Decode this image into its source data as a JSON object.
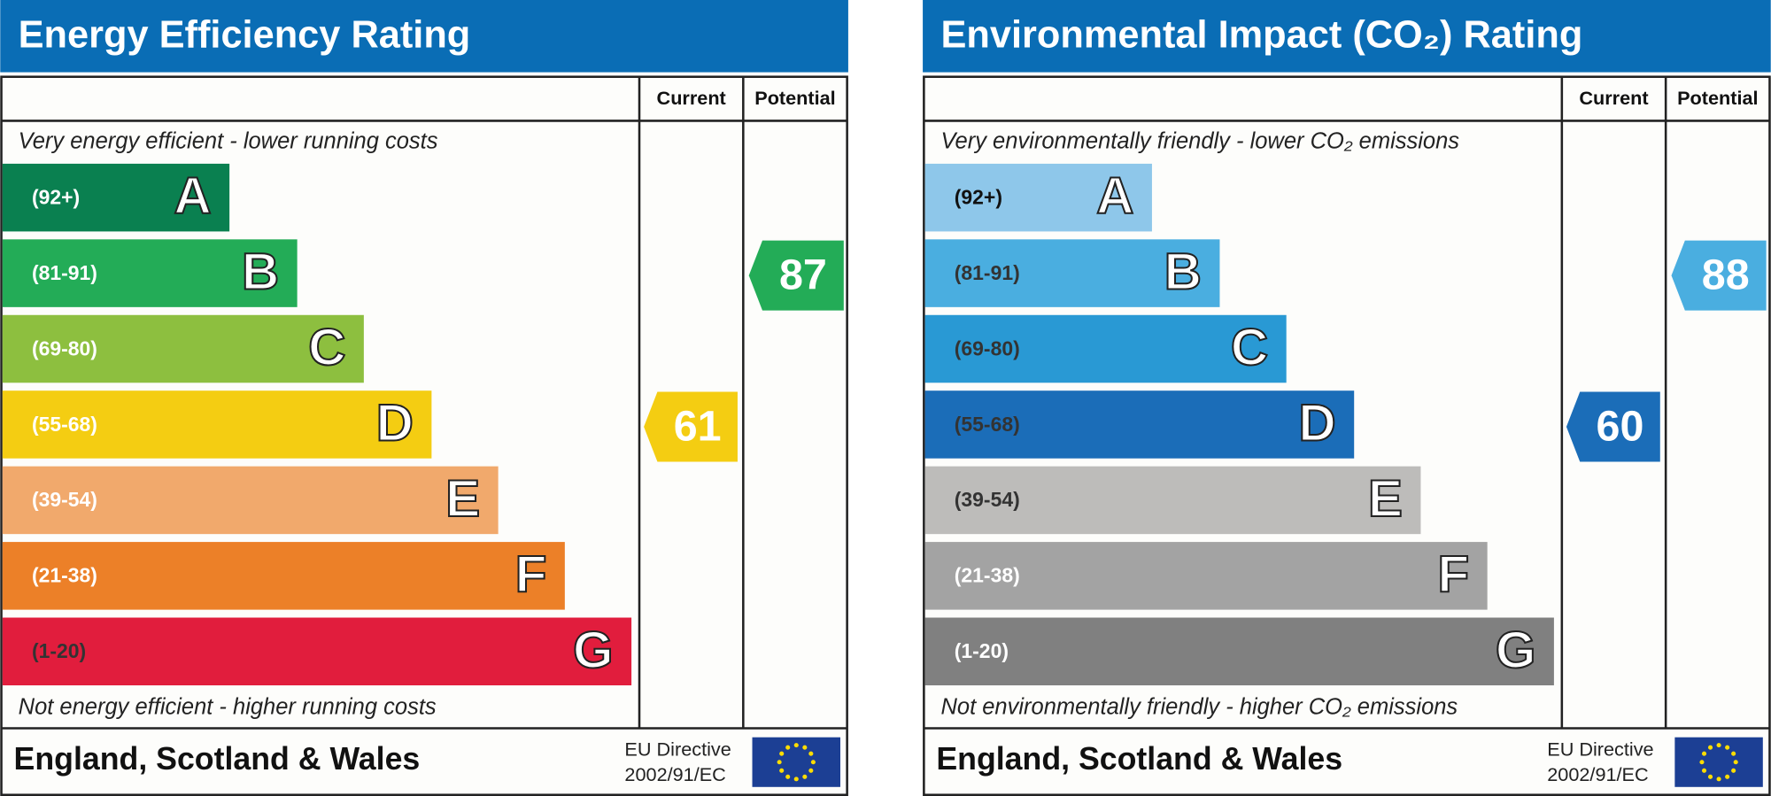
{
  "panels": [
    {
      "title": "Energy Efficiency Rating",
      "col_current": "Current",
      "col_potential": "Potential",
      "top_text": "Very energy efficient - lower running costs",
      "bottom_text": "Not energy efficient - higher running costs",
      "bands": [
        {
          "range": "(92+)",
          "letter": "A",
          "color": "#0a8050",
          "label_color": "#ffffff"
        },
        {
          "range": "(81-91)",
          "letter": "B",
          "color": "#23ac57",
          "label_color": "#ffffff"
        },
        {
          "range": "(69-80)",
          "letter": "C",
          "color": "#8dbf3f",
          "label_color": "#ffffff"
        },
        {
          "range": "(55-68)",
          "letter": "D",
          "color": "#f4cd12",
          "label_color": "#ffffff"
        },
        {
          "range": "(39-54)",
          "letter": "E",
          "color": "#f1a96c",
          "label_color": "#ffffff"
        },
        {
          "range": "(21-38)",
          "letter": "F",
          "color": "#ec8028",
          "label_color": "#ffffff"
        },
        {
          "range": "(1-20)",
          "letter": "G",
          "color": "#e11d3d",
          "label_color": "#333333"
        }
      ],
      "current": 61,
      "potential": 87,
      "footer": "England, Scotland & Wales",
      "directive_line1": "EU Directive",
      "directive_line2": "2002/91/EC"
    },
    {
      "title": "Environmental Impact (CO₂) Rating",
      "col_current": "Current",
      "col_potential": "Potential",
      "top_text": "Very environmentally friendly - lower CO₂ emissions",
      "bottom_text": "Not environmentally friendly - higher CO₂ emissions",
      "bands": [
        {
          "range": "(92+)",
          "letter": "A",
          "color": "#8ec7ea",
          "label_color": "#111111"
        },
        {
          "range": "(81-91)",
          "letter": "B",
          "color": "#4aaee0",
          "label_color": "#333333"
        },
        {
          "range": "(69-80)",
          "letter": "C",
          "color": "#2999d4",
          "label_color": "#333333"
        },
        {
          "range": "(55-68)",
          "letter": "D",
          "color": "#1b6db8",
          "label_color": "#333333"
        },
        {
          "range": "(39-54)",
          "letter": "E",
          "color": "#bdbcba",
          "label_color": "#333333"
        },
        {
          "range": "(21-38)",
          "letter": "F",
          "color": "#a3a3a3",
          "label_color": "#ffffff"
        },
        {
          "range": "(1-20)",
          "letter": "G",
          "color": "#808080",
          "label_color": "#ffffff"
        }
      ],
      "current": 60,
      "potential": 88,
      "footer": "England, Scotland & Wales",
      "directive_line1": "EU Directive",
      "directive_line2": "2002/91/EC"
    }
  ]
}
